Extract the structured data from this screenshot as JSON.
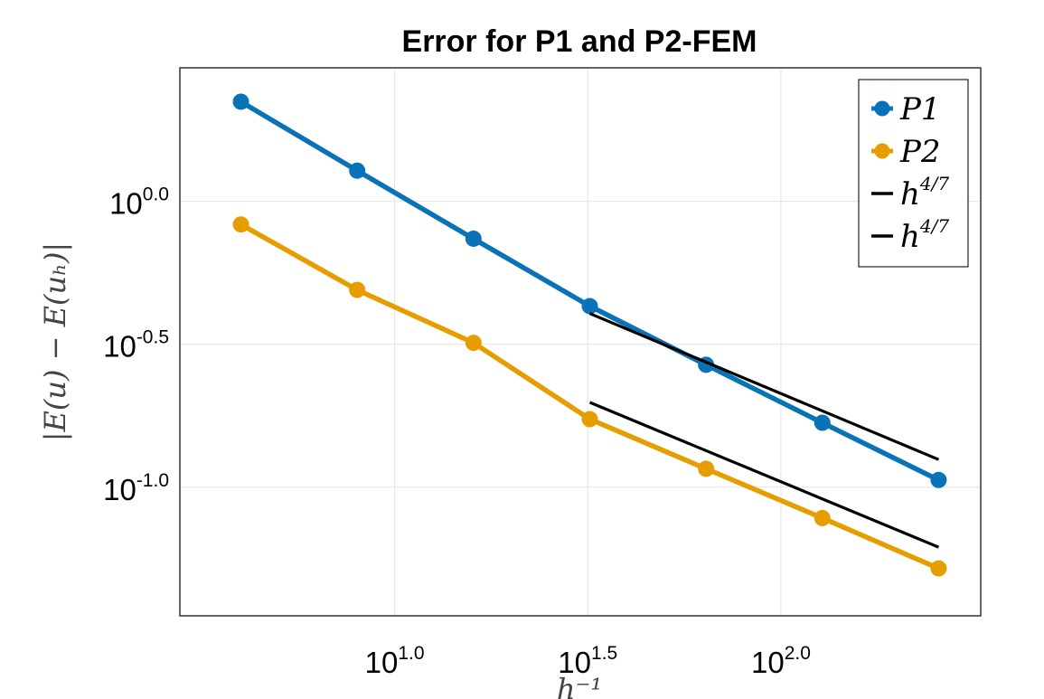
{
  "chart_data": {
    "type": "line",
    "title": "Error for P1 and P2-FEM",
    "xlabel": "h⁻¹",
    "ylabel": "|E(u) − E(uₕ)|",
    "xscale": "log10",
    "yscale": "log10",
    "xlim": [
      2.78,
      329
    ],
    "ylim": [
      0.0355,
      2.93
    ],
    "grid": true,
    "legend_position": "top-right",
    "x_ticks": [
      {
        "value": 10,
        "base": "10",
        "exp": "1.0"
      },
      {
        "value": 31.62,
        "base": "10",
        "exp": "1.5"
      },
      {
        "value": 100,
        "base": "10",
        "exp": "2.0"
      }
    ],
    "y_ticks": [
      {
        "value": 1,
        "base": "10",
        "exp": "0.0"
      },
      {
        "value": 0.3162,
        "base": "10",
        "exp": "-0.5"
      },
      {
        "value": 0.1,
        "base": "10",
        "exp": "-1.0"
      }
    ],
    "series": [
      {
        "name": "P1",
        "color": "#0a72b6",
        "marker": "circle",
        "x": [
          4,
          8,
          16,
          32,
          64,
          128,
          256
        ],
        "y": [
          2.23,
          1.28,
          0.74,
          0.43,
          0.268,
          0.168,
          0.106
        ]
      },
      {
        "name": "P2",
        "color": "#e69d00",
        "marker": "circle",
        "x": [
          4,
          8,
          16,
          32,
          64,
          128,
          256
        ],
        "y": [
          0.83,
          0.49,
          0.32,
          0.173,
          0.116,
          0.078,
          0.052
        ]
      },
      {
        "name": "h",
        "sup": "4/7",
        "color": "#000000",
        "marker": "none",
        "x": [
          32,
          256
        ],
        "y": [
          0.405,
          0.125
        ]
      },
      {
        "name": "h",
        "sup": "4/7",
        "color": "#000000",
        "marker": "none",
        "x": [
          32,
          256
        ],
        "y": [
          0.198,
          0.0617
        ]
      }
    ]
  }
}
